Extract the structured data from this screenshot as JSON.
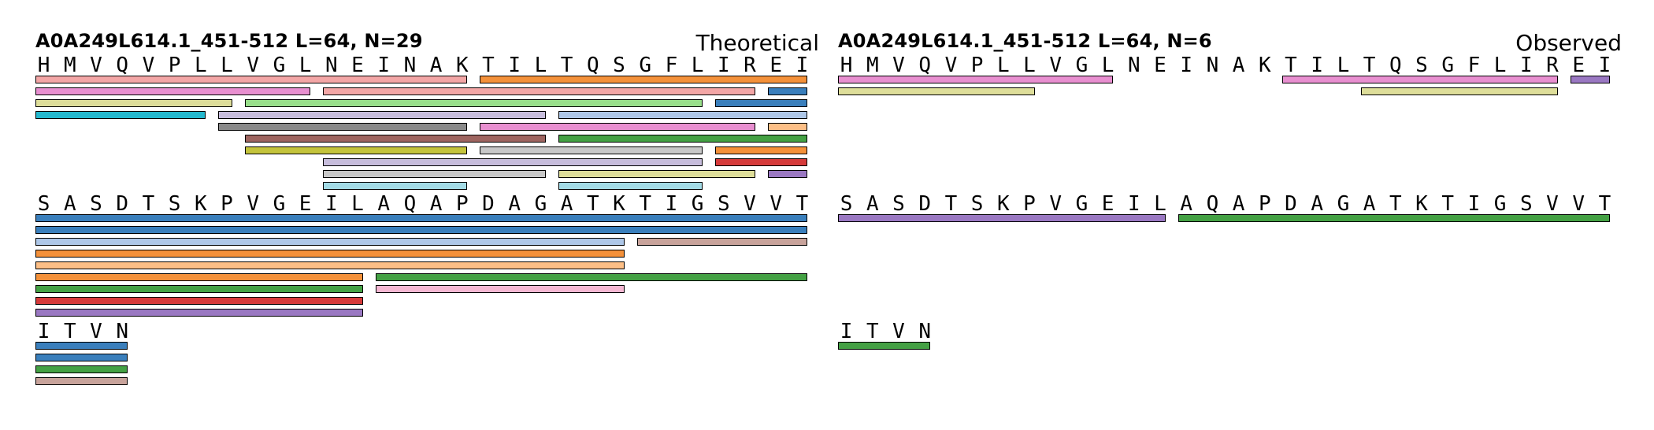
{
  "palette": {
    "blue": "#3a7fbc",
    "ltblue": "#aec7e8",
    "orange": "#f4913a",
    "ltorange": "#fdbf86",
    "green": "#44a144",
    "ltgreen": "#98df8a",
    "red": "#d63a3a",
    "salmon": "#f3a6a6",
    "purple": "#9a78c2",
    "lavender": "#c7bddc",
    "brown": "#9e6560",
    "rose": "#c8a39b",
    "pink": "#e88fd0",
    "ltpink": "#f5b7d2",
    "gray": "#8a8a8a",
    "ltgray": "#c8c8c8",
    "olive": "#c4c43c",
    "khaki": "#dede9a",
    "cyan": "#24b8ce",
    "ltcyan": "#a3dbe6"
  },
  "panels": [
    {
      "title": "A0A249L614.1_451-512  L=64, N=29",
      "label": "Theoretical",
      "rows": [
        {
          "sequence": [
            "H",
            "M",
            "V",
            "Q",
            "V",
            "P",
            "L",
            "L",
            "V",
            "G",
            "L",
            "N",
            "E",
            "I",
            "N",
            "A",
            "K",
            "T",
            "I",
            "L",
            "T",
            "Q",
            "S",
            "G",
            "F",
            "L",
            "I",
            "R",
            "E",
            "I"
          ],
          "peptides": [
            {
              "start": 1,
              "end": 17,
              "lane": 0,
              "color": "salmon"
            },
            {
              "start": 18,
              "end": 30,
              "lane": 0,
              "color": "orange"
            },
            {
              "start": 1,
              "end": 11,
              "lane": 1,
              "color": "pink"
            },
            {
              "start": 12,
              "end": 28,
              "lane": 1,
              "color": "salmon"
            },
            {
              "start": 29,
              "end": 30,
              "lane": 1,
              "color": "blue"
            },
            {
              "start": 1,
              "end": 8,
              "lane": 2,
              "color": "khaki"
            },
            {
              "start": 9,
              "end": 26,
              "lane": 2,
              "color": "ltgreen"
            },
            {
              "start": 27,
              "end": 30,
              "lane": 2,
              "color": "blue"
            },
            {
              "start": 1,
              "end": 7,
              "lane": 3,
              "color": "cyan"
            },
            {
              "start": 8,
              "end": 20,
              "lane": 3,
              "color": "lavender"
            },
            {
              "start": 21,
              "end": 30,
              "lane": 3,
              "color": "ltblue"
            },
            {
              "start": 8,
              "end": 17,
              "lane": 4,
              "color": "gray"
            },
            {
              "start": 18,
              "end": 28,
              "lane": 4,
              "color": "pink"
            },
            {
              "start": 29,
              "end": 30,
              "lane": 4,
              "color": "ltorange"
            },
            {
              "start": 9,
              "end": 20,
              "lane": 5,
              "color": "brown"
            },
            {
              "start": 21,
              "end": 30,
              "lane": 5,
              "color": "green"
            },
            {
              "start": 9,
              "end": 17,
              "lane": 6,
              "color": "olive"
            },
            {
              "start": 18,
              "end": 26,
              "lane": 6,
              "color": "ltgray"
            },
            {
              "start": 27,
              "end": 30,
              "lane": 6,
              "color": "orange"
            },
            {
              "start": 12,
              "end": 26,
              "lane": 7,
              "color": "lavender"
            },
            {
              "start": 27,
              "end": 30,
              "lane": 7,
              "color": "red"
            },
            {
              "start": 12,
              "end": 20,
              "lane": 8,
              "color": "ltgray"
            },
            {
              "start": 21,
              "end": 28,
              "lane": 8,
              "color": "khaki"
            },
            {
              "start": 29,
              "end": 30,
              "lane": 8,
              "color": "purple"
            },
            {
              "start": 12,
              "end": 17,
              "lane": 9,
              "color": "ltcyan"
            },
            {
              "start": 21,
              "end": 26,
              "lane": 9,
              "color": "ltcyan"
            }
          ]
        },
        {
          "sequence": [
            "S",
            "A",
            "S",
            "D",
            "T",
            "S",
            "K",
            "P",
            "V",
            "G",
            "E",
            "I",
            "L",
            "A",
            "Q",
            "A",
            "P",
            "D",
            "A",
            "G",
            "A",
            "T",
            "K",
            "T",
            "I",
            "G",
            "S",
            "V",
            "V",
            "T"
          ],
          "peptides": [
            {
              "start": 1,
              "end": 30,
              "lane": 0,
              "color": "blue"
            },
            {
              "start": 1,
              "end": 30,
              "lane": 1,
              "color": "blue"
            },
            {
              "start": 1,
              "end": 23,
              "lane": 2,
              "color": "ltblue"
            },
            {
              "start": 24,
              "end": 30,
              "lane": 2,
              "color": "rose"
            },
            {
              "start": 1,
              "end": 23,
              "lane": 3,
              "color": "orange"
            },
            {
              "start": 1,
              "end": 23,
              "lane": 4,
              "color": "ltorange"
            },
            {
              "start": 1,
              "end": 13,
              "lane": 5,
              "color": "orange"
            },
            {
              "start": 14,
              "end": 30,
              "lane": 5,
              "color": "green"
            },
            {
              "start": 1,
              "end": 13,
              "lane": 6,
              "color": "green"
            },
            {
              "start": 14,
              "end": 23,
              "lane": 6,
              "color": "ltpink"
            },
            {
              "start": 1,
              "end": 13,
              "lane": 7,
              "color": "red"
            },
            {
              "start": 1,
              "end": 13,
              "lane": 8,
              "color": "purple"
            }
          ]
        },
        {
          "sequence": [
            "I",
            "T",
            "V",
            "N"
          ],
          "peptides": [
            {
              "start": 1,
              "end": 4,
              "lane": 0,
              "color": "blue"
            },
            {
              "start": 1,
              "end": 4,
              "lane": 1,
              "color": "blue"
            },
            {
              "start": 1,
              "end": 4,
              "lane": 2,
              "color": "green"
            },
            {
              "start": 1,
              "end": 4,
              "lane": 3,
              "color": "rose"
            }
          ]
        }
      ]
    },
    {
      "title": "A0A249L614.1_451-512  L=64, N=6",
      "label": "Observed",
      "rows": [
        {
          "sequence": [
            "H",
            "M",
            "V",
            "Q",
            "V",
            "P",
            "L",
            "L",
            "V",
            "G",
            "L",
            "N",
            "E",
            "I",
            "N",
            "A",
            "K",
            "T",
            "I",
            "L",
            "T",
            "Q",
            "S",
            "G",
            "F",
            "L",
            "I",
            "R",
            "E",
            "I"
          ],
          "peptides": [
            {
              "start": 1,
              "end": 11,
              "lane": 0,
              "color": "pink"
            },
            {
              "start": 18,
              "end": 28,
              "lane": 0,
              "color": "pink"
            },
            {
              "start": 29,
              "end": 30,
              "lane": 0,
              "color": "purple"
            },
            {
              "start": 1,
              "end": 8,
              "lane": 1,
              "color": "khaki"
            },
            {
              "start": 21,
              "end": 28,
              "lane": 1,
              "color": "khaki"
            }
          ]
        },
        {
          "sequence": [
            "S",
            "A",
            "S",
            "D",
            "T",
            "S",
            "K",
            "P",
            "V",
            "G",
            "E",
            "I",
            "L",
            "A",
            "Q",
            "A",
            "P",
            "D",
            "A",
            "G",
            "A",
            "T",
            "K",
            "T",
            "I",
            "G",
            "S",
            "V",
            "V",
            "T"
          ],
          "peptides": [
            {
              "start": 1,
              "end": 13,
              "lane": 0,
              "color": "purple"
            },
            {
              "start": 14,
              "end": 30,
              "lane": 0,
              "color": "green"
            }
          ]
        },
        {
          "sequence": [
            "I",
            "T",
            "V",
            "N"
          ],
          "peptides": [
            {
              "start": 1,
              "end": 4,
              "lane": 0,
              "color": "green"
            }
          ]
        }
      ]
    }
  ]
}
